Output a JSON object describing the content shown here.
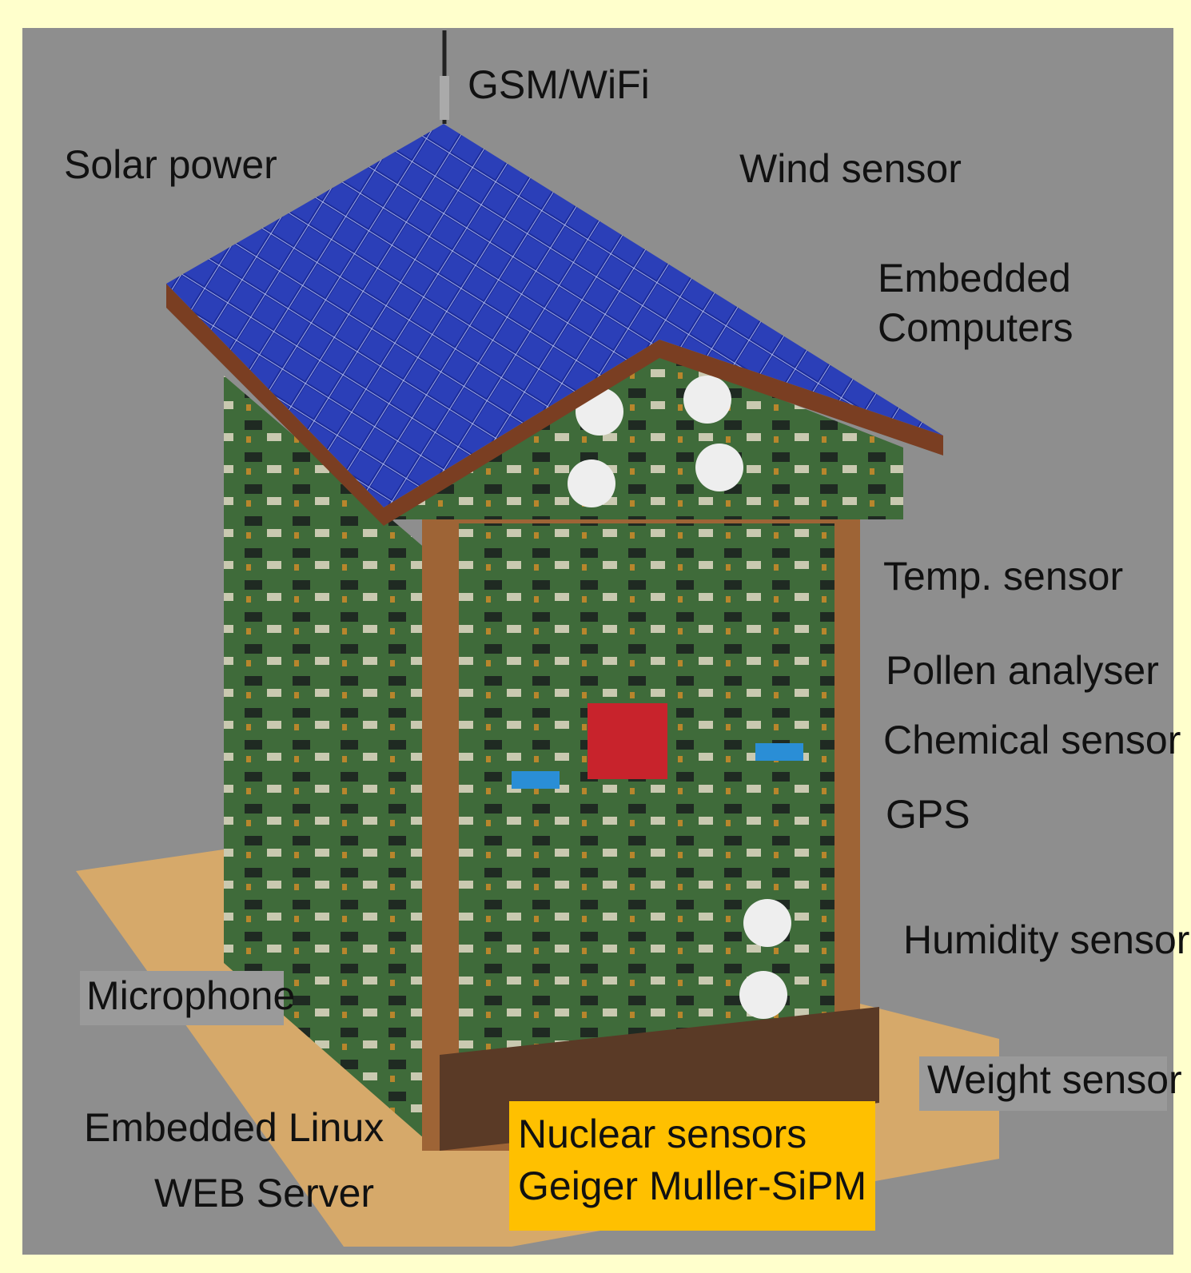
{
  "labels": {
    "gsm_wifi": "GSM/WiFi",
    "solar_power": "Solar power",
    "wind_sensor": "Wind sensor",
    "embedded_computers": [
      "Embedded",
      "Computers"
    ],
    "temp_sensor": "Temp. sensor",
    "pollen_analyser": "Pollen analyser",
    "chemical_sensor": "Chemical sensor",
    "gps": "GPS",
    "humidity_sensor": "Humidity sensor",
    "weight_sensor": "Weight sensor",
    "microphone": "Microphone",
    "embedded_linux": "Embedded Linux",
    "web_server": "WEB Server",
    "nuclear_sensors": [
      "Nuclear sensors",
      "Geiger Muller-SiPM"
    ]
  }
}
